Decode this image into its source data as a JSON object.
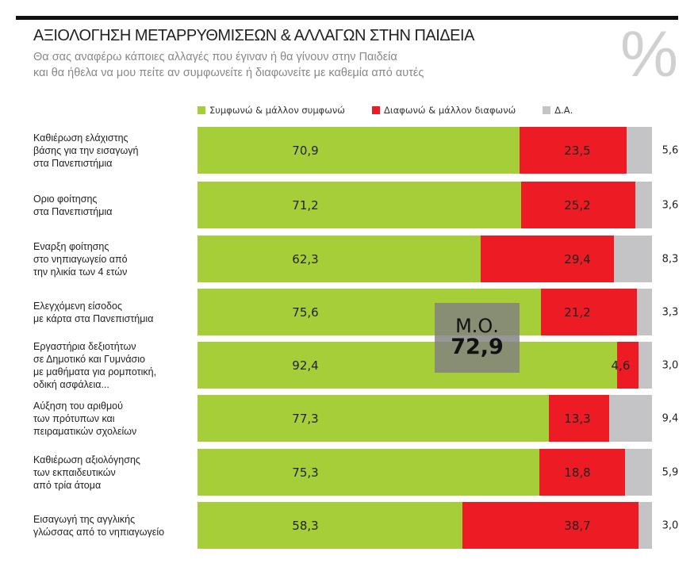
{
  "title": "ΑΞΙΟΛΟΓΗΣΗ ΜΕΤΑΡΡΥΘΜΙΣΕΩΝ & ΑΛΛΑΓΩΝ ΣΤΗΝ ΠΑΙΔΕΙΑ",
  "subtitle1": "Θα σας αναφέρω κάποιες αλλαγές που έγιναν ή θα γίνουν στην Παιδεία",
  "subtitle2": "και θα ήθελα να μου πείτε αν συμφωνείτε ή διαφωνείτε με καθεμία από αυτές",
  "unit_symbol": "%",
  "colors": {
    "agree": "#a6ce39",
    "disagree": "#ed1c24",
    "dk": "#c4c4c6"
  },
  "chart_data": {
    "type": "bar",
    "orientation": "horizontal",
    "stacked": true,
    "xlim": [
      0,
      100
    ],
    "legend": "top",
    "categories": [
      "Καθιέρωση ελάχιστης\nβάσης για την εισαγωγή\nστα Πανεπιστήμια",
      "Οριο φοίτησης\nστα Πανεπιστήμια",
      "Εναρξη φοίτησης\nστο νηπιαγωγείο από\nτην ηλικία των 4 ετών",
      "Ελεγχόμενη είσοδος\nμε κάρτα στα Πανεπιστήμια",
      "Εργαστήρια δεξιοτήτων\nσε Δημοτικό και Γυμνάσιο\nμε μαθήματα για ρομποτική,\nοδική ασφάλεια...",
      "Αύξηση του αριθμού\nτων πρότυπων και\nπειραματικών σχολείων",
      "Καθιέρωση αξιολόγησης\nτων εκπαιδευτικών\nαπό τρία άτομα",
      "Εισαγωγή της αγγλικής\nγλώσσας από το νηπιαγωγείο"
    ],
    "series": [
      {
        "name": "Συμφωνώ & μάλλον συμφωνώ",
        "values": [
          70.9,
          71.2,
          62.3,
          75.6,
          92.4,
          77.3,
          75.3,
          58.3
        ],
        "labels": [
          "70,9",
          "71,2",
          "62,3",
          "75,6",
          "92,4",
          "77,3",
          "75,3",
          "58,3"
        ]
      },
      {
        "name": "Διαφωνώ & μάλλον διαφωνώ",
        "values": [
          23.5,
          25.2,
          29.4,
          21.2,
          4.6,
          13.3,
          18.8,
          38.7
        ],
        "labels": [
          "23,5",
          "25,2",
          "29,4",
          "21,2",
          "4,6",
          "13,3",
          "18,8",
          "38,7"
        ]
      },
      {
        "name": "Δ.Α.",
        "values": [
          5.6,
          3.6,
          8.3,
          3.3,
          3.0,
          9.4,
          5.9,
          3.0
        ],
        "labels": [
          "5,6",
          "3,6",
          "8,3",
          "3,3",
          "3,0",
          "9,4",
          "5,9",
          "3,0"
        ]
      }
    ],
    "annotation": {
      "label": "Μ.Ο.",
      "value": "72,9"
    }
  }
}
